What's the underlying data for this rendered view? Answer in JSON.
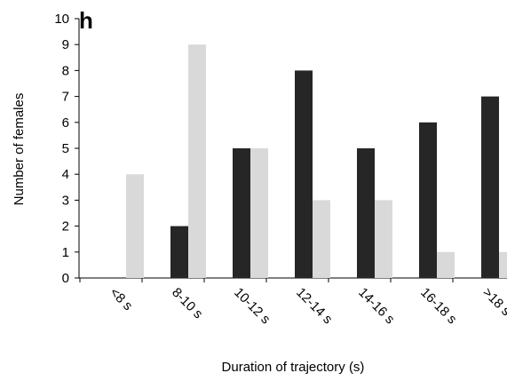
{
  "panel_label": "h",
  "chart_data": {
    "type": "bar",
    "categories": [
      "<8 s",
      "8-10 s",
      "10-12 s",
      "12-14 s",
      "14-16 s",
      "16-18 s",
      ">18 s"
    ],
    "series": [
      {
        "values": [
          0,
          2,
          5,
          8,
          5,
          6,
          7
        ],
        "color": "#262626"
      },
      {
        "values": [
          4,
          9,
          5,
          3,
          3,
          1,
          1
        ],
        "color": "#d9d9d9"
      }
    ],
    "xlabel": "Duration of trajectory (s)",
    "ylabel": "Number of females",
    "ylim": [
      0,
      10
    ],
    "yticks": [
      0,
      1,
      2,
      3,
      4,
      5,
      6,
      7,
      8,
      9,
      10
    ],
    "grid": false,
    "legend": "none"
  }
}
